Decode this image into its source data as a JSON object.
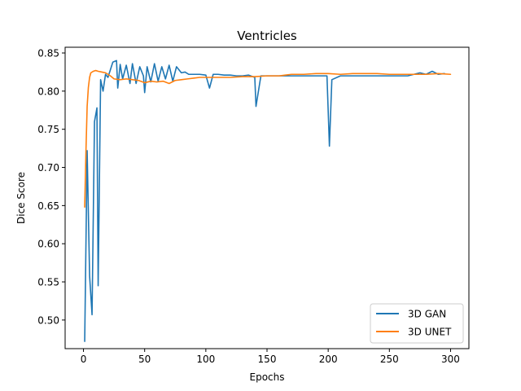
{
  "chart_data": {
    "type": "line",
    "title": "Ventricles",
    "xlabel": "Epochs",
    "ylabel": "Dice Score",
    "xlim": [
      -15,
      315
    ],
    "ylim": [
      0.4625,
      0.8575
    ],
    "xticks": [
      0,
      50,
      100,
      150,
      200,
      250,
      300
    ],
    "xtick_labels": [
      "0",
      "50",
      "100",
      "150",
      "200",
      "250",
      "300"
    ],
    "yticks": [
      0.5,
      0.55,
      0.6,
      0.65,
      0.7,
      0.75,
      0.8,
      0.85
    ],
    "ytick_labels": [
      "0.50",
      "0.55",
      "0.60",
      "0.65",
      "0.70",
      "0.75",
      "0.80",
      "0.85"
    ],
    "grid": false,
    "legend_position": "lower right",
    "series": [
      {
        "name": "3D GAN",
        "color": "#1f77b4",
        "x": [
          1,
          3,
          5,
          7,
          9,
          11,
          12,
          14,
          16,
          18,
          20,
          24,
          27,
          28,
          30,
          32,
          35,
          38,
          40,
          43,
          46,
          49,
          50,
          52,
          55,
          58,
          61,
          64,
          67,
          70,
          73,
          76,
          80,
          83,
          86,
          90,
          95,
          100,
          103,
          106,
          110,
          115,
          120,
          125,
          130,
          135,
          140,
          141,
          145,
          150,
          155,
          160,
          165,
          170,
          175,
          180,
          185,
          190,
          195,
          199,
          201,
          203,
          210,
          215,
          220,
          225,
          230,
          235,
          240,
          245,
          250,
          255,
          260,
          265,
          270,
          275,
          280,
          285,
          290,
          295
        ],
        "y": [
          0.472,
          0.722,
          0.558,
          0.507,
          0.76,
          0.778,
          0.545,
          0.815,
          0.8,
          0.822,
          0.818,
          0.838,
          0.84,
          0.804,
          0.835,
          0.816,
          0.834,
          0.81,
          0.836,
          0.81,
          0.832,
          0.82,
          0.798,
          0.832,
          0.812,
          0.836,
          0.813,
          0.832,
          0.816,
          0.834,
          0.813,
          0.832,
          0.824,
          0.825,
          0.822,
          0.822,
          0.822,
          0.821,
          0.804,
          0.822,
          0.822,
          0.821,
          0.821,
          0.82,
          0.82,
          0.821,
          0.818,
          0.78,
          0.82,
          0.82,
          0.82,
          0.82,
          0.82,
          0.82,
          0.82,
          0.82,
          0.82,
          0.82,
          0.82,
          0.82,
          0.728,
          0.815,
          0.82,
          0.82,
          0.82,
          0.82,
          0.82,
          0.82,
          0.82,
          0.82,
          0.82,
          0.82,
          0.82,
          0.82,
          0.822,
          0.824,
          0.822,
          0.826,
          0.822,
          0.823
        ]
      },
      {
        "name": "3D UNET",
        "color": "#ff7f0e",
        "x": [
          1,
          2,
          3,
          4,
          5,
          6,
          8,
          10,
          12,
          15,
          18,
          20,
          22,
          25,
          30,
          35,
          40,
          45,
          50,
          55,
          60,
          65,
          70,
          75,
          80,
          85,
          90,
          95,
          100,
          105,
          110,
          120,
          130,
          140,
          150,
          160,
          165,
          170,
          180,
          190,
          200,
          210,
          220,
          230,
          240,
          250,
          260,
          270,
          280,
          290,
          300
        ],
        "y": [
          0.648,
          0.72,
          0.78,
          0.805,
          0.818,
          0.824,
          0.826,
          0.827,
          0.826,
          0.825,
          0.824,
          0.822,
          0.82,
          0.816,
          0.815,
          0.816,
          0.815,
          0.814,
          0.811,
          0.813,
          0.812,
          0.813,
          0.81,
          0.814,
          0.815,
          0.816,
          0.817,
          0.818,
          0.818,
          0.818,
          0.818,
          0.818,
          0.819,
          0.819,
          0.82,
          0.82,
          0.821,
          0.822,
          0.822,
          0.823,
          0.823,
          0.822,
          0.823,
          0.823,
          0.823,
          0.822,
          0.822,
          0.822,
          0.822,
          0.823,
          0.822
        ]
      }
    ]
  }
}
